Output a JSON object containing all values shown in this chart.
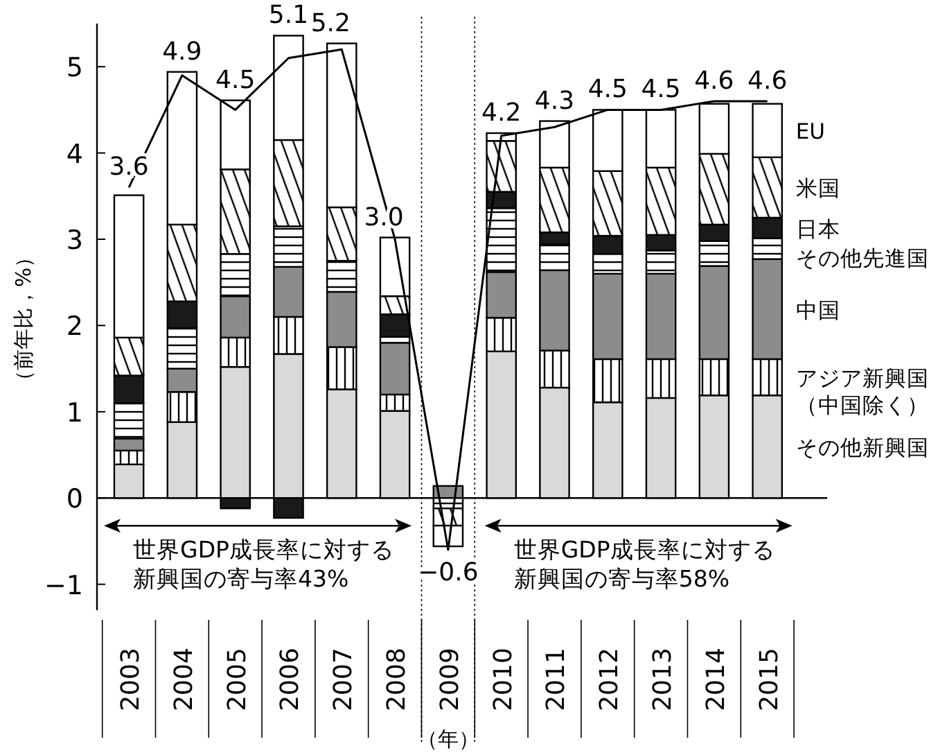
{
  "chart_data": {
    "type": "bar",
    "stacked": true,
    "xlabel": "（年）",
    "ylabel": "（前年比，%）",
    "categories": [
      "2003",
      "2004",
      "2005",
      "2006",
      "2007",
      "2008",
      "2009",
      "2010",
      "2011",
      "2012",
      "2013",
      "2014",
      "2015"
    ],
    "series": [
      {
        "name": "その他新興国",
        "color": "#d9d9d9",
        "values": [
          0.39,
          0.88,
          1.52,
          1.67,
          1.26,
          1.01,
          0,
          1.7,
          1.28,
          1.11,
          1.16,
          1.19,
          1.19
        ]
      },
      {
        "name": "アジア新興国（中国除く）",
        "color": "#000000",
        "values": [
          0.16,
          0.35,
          0.34,
          0.43,
          0.49,
          0.19,
          0,
          0.39,
          0.43,
          0.5,
          0.45,
          0.42,
          0.42
        ]
      },
      {
        "name": "中国",
        "color": "#8c8c8c",
        "values": [
          0.14,
          0.27,
          0.48,
          0.58,
          0.64,
          0.6,
          0.14,
          0.53,
          0.93,
          0.99,
          0.99,
          1.08,
          1.16
        ]
      },
      {
        "name": "その他先進国",
        "color": "#000000",
        "values": [
          0.41,
          0.47,
          0.49,
          0.47,
          0.36,
          0.07,
          -0.12,
          0.74,
          0.3,
          0.23,
          0.27,
          0.29,
          0.24
        ]
      },
      {
        "name": "日本",
        "color": "#1a1a1a",
        "values": [
          0.32,
          0.31,
          -0.12,
          -0.23,
          0,
          0.26,
          0,
          0.19,
          0.14,
          0.21,
          0.18,
          0.19,
          0.24
        ]
      },
      {
        "name": "米国",
        "color": "#000000",
        "values": [
          0.44,
          0.89,
          0.98,
          1.0,
          0.62,
          0.21,
          -0.2,
          0.59,
          0.75,
          0.75,
          0.78,
          0.82,
          0.7
        ]
      },
      {
        "name": "EU",
        "color": "#ffffff",
        "values": [
          1.65,
          1.77,
          0.8,
          1.21,
          1.9,
          0.68,
          -0.24,
          0.09,
          0.54,
          0.71,
          0.67,
          0.58,
          0.62
        ]
      },
      {
        "type": "line",
        "color": "#000000",
        "values": [
          3.6,
          4.9,
          4.5,
          5.1,
          5.2,
          3.0,
          -0.6,
          4.2,
          4.3,
          4.5,
          4.5,
          4.6,
          4.6
        ],
        "value_labels": [
          "3.6",
          "4.9",
          "4.5",
          "5.1",
          "5.2",
          "3.0",
          "−0.6",
          "4.2",
          "4.3",
          "4.5",
          "4.5",
          "4.6",
          "4.6"
        ]
      }
    ],
    "ylim": [
      -1.3,
      5.5
    ],
    "yticks": [
      {
        "value": -1,
        "label": "−1"
      },
      0,
      1,
      2,
      3,
      4,
      5
    ],
    "legend": "right",
    "marker": "none",
    "annotations": [
      "世界GDP成長率に対する新興国の寄与率43%",
      "世界GDP成長率に対する新興国の寄与率58%"
    ]
  }
}
